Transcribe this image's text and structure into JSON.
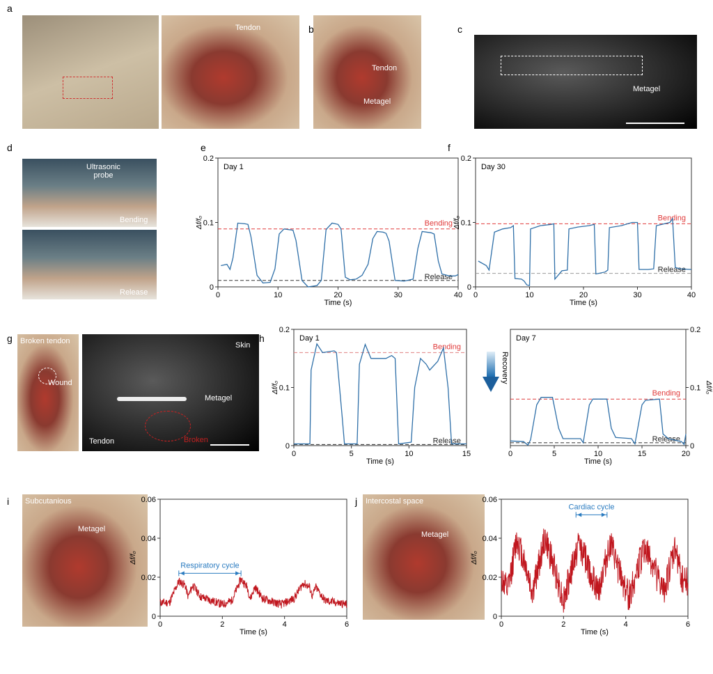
{
  "panels": {
    "a": "a",
    "b": "b",
    "c": "c",
    "d": "d",
    "e": "e",
    "f": "f",
    "g": "g",
    "h": "h",
    "i": "i",
    "j": "j"
  },
  "photo_labels": {
    "a_tendon": "Tendon",
    "b_tendon": "Tendon",
    "b_metagel": "Metagel",
    "c_metagel": "Metagel",
    "d_probe": "Ultrasonic\nprobe",
    "d_bending": "Bending",
    "d_release": "Release",
    "g_broken_tendon": "Broken tendon",
    "g_wound": "Wound",
    "g_skin": "Skin",
    "g_metagel": "Metagel",
    "g_tendon": "Tendon",
    "g_broken": "Broken",
    "i_site": "Subcutanious",
    "i_metagel": "Metagel",
    "j_site": "Intercostal space",
    "j_metagel": "Metagel"
  },
  "recovery_label": "Recovery",
  "colors": {
    "trace_blue": "#2e6fa8",
    "trace_red": "#c0161e",
    "bending_line": "#e03a3a",
    "release_line": "#333333",
    "annotation": "#2a7bc0"
  },
  "chart_data": [
    {
      "id": "e",
      "type": "line",
      "title": "Day 1",
      "xlabel": "Time (s)",
      "ylabel": "Δf/f₀",
      "xlim": [
        0,
        40
      ],
      "ylim": [
        0,
        0.2
      ],
      "xticks": [
        0,
        10,
        20,
        30,
        40
      ],
      "yticks": [
        0,
        0.1,
        0.2
      ],
      "ytick_labels": [
        "0",
        "0.1",
        "0.2"
      ],
      "color": "#2e6fa8",
      "refs": [
        {
          "label": "Bending",
          "y": 0.09,
          "color": "#e03a3a"
        },
        {
          "label": "Release",
          "y": 0.01,
          "color": "#333333"
        }
      ],
      "x": [
        0.5,
        1.5,
        2,
        2.5,
        3.3,
        4.5,
        5,
        5.5,
        6.5,
        7.5,
        8.7,
        9.5,
        10.2,
        11,
        12.5,
        13,
        14,
        15,
        16.5,
        17.2,
        18,
        19,
        20,
        20.5,
        21.2,
        22,
        23,
        24,
        25,
        25.8,
        26.5,
        27.5,
        28,
        28.5,
        29.5,
        31,
        32.5,
        33.3,
        34,
        35.5,
        36,
        36.7,
        37.3,
        38.5,
        39.5,
        40
      ],
      "y": [
        0.033,
        0.035,
        0.027,
        0.045,
        0.099,
        0.098,
        0.097,
        0.078,
        0.018,
        0.006,
        0.007,
        0.028,
        0.082,
        0.09,
        0.088,
        0.072,
        0.01,
        0.0,
        0.002,
        0.01,
        0.089,
        0.099,
        0.097,
        0.09,
        0.015,
        0.011,
        0.012,
        0.018,
        0.035,
        0.075,
        0.086,
        0.085,
        0.083,
        0.071,
        0.01,
        0.009,
        0.012,
        0.06,
        0.086,
        0.084,
        0.082,
        0.04,
        0.02,
        0.017,
        0.017,
        0.019
      ]
    },
    {
      "id": "f",
      "type": "line",
      "title": "Day 30",
      "xlabel": "Time (s)",
      "ylabel": "Δf/f₀",
      "xlim": [
        0,
        40
      ],
      "ylim": [
        0,
        0.2
      ],
      "xticks": [
        0,
        10,
        20,
        30,
        40
      ],
      "yticks": [
        0,
        0.1,
        0.2
      ],
      "ytick_labels": [
        "0",
        "0.1",
        "0.2"
      ],
      "color": "#2e6fa8",
      "refs": [
        {
          "label": "Bending",
          "y": 0.098,
          "color": "#e03a3a"
        },
        {
          "label": "Release",
          "y": 0.021,
          "color": "#999999"
        }
      ],
      "x": [
        0.5,
        2,
        2.5,
        3.5,
        5,
        6.5,
        7,
        7.3,
        8.5,
        9,
        9.5,
        10,
        10.2,
        12,
        14,
        14.5,
        14.7,
        16,
        17,
        17.3,
        19,
        21,
        22,
        22.3,
        24,
        24.5,
        24.8,
        27,
        29,
        30,
        30.3,
        32,
        33,
        33.5,
        36,
        36.5,
        37,
        38,
        40
      ],
      "y": [
        0.04,
        0.033,
        0.026,
        0.085,
        0.09,
        0.092,
        0.095,
        0.013,
        0.012,
        0.009,
        0.003,
        0.002,
        0.09,
        0.095,
        0.097,
        0.098,
        0.012,
        0.025,
        0.026,
        0.09,
        0.093,
        0.095,
        0.097,
        0.02,
        0.023,
        0.026,
        0.092,
        0.095,
        0.1,
        0.1,
        0.027,
        0.027,
        0.028,
        0.095,
        0.1,
        0.106,
        0.03,
        0.028,
        0.027
      ]
    },
    {
      "id": "h1",
      "type": "line",
      "title": "Day 1",
      "xlabel": "Time (s)",
      "ylabel": "Δf/f₀",
      "xlim": [
        0,
        15
      ],
      "ylim": [
        0,
        0.2
      ],
      "xticks": [
        0,
        5,
        10,
        15
      ],
      "yticks": [
        0,
        0.1,
        0.2
      ],
      "ytick_labels": [
        "0",
        "0.1",
        "0.2"
      ],
      "color": "#2e6fa8",
      "refs": [
        {
          "label": "Bending",
          "y": 0.16,
          "color": "#e08080"
        },
        {
          "label": "Release",
          "y": 0.002,
          "color": "#333333"
        }
      ],
      "x": [
        0,
        1.4,
        1.5,
        2,
        2.5,
        3.5,
        3.7,
        4.2,
        4.4,
        5.5,
        5.7,
        6.2,
        6.7,
        8,
        8.5,
        8.8,
        9.1,
        10.2,
        10.5,
        11,
        11.5,
        11.8,
        12.5,
        13,
        13.4,
        13.7,
        15
      ],
      "y": [
        0.003,
        0.003,
        0.13,
        0.175,
        0.16,
        0.163,
        0.16,
        0.05,
        0.003,
        0.003,
        0.14,
        0.174,
        0.15,
        0.15,
        0.155,
        0.15,
        0.003,
        0.006,
        0.1,
        0.15,
        0.14,
        0.13,
        0.145,
        0.168,
        0.1,
        0.003,
        0.003
      ]
    },
    {
      "id": "h2",
      "type": "line",
      "title": "Day 7",
      "xlabel": "Time (s)",
      "ylabel": "Δf/f₀",
      "xlim": [
        0,
        20
      ],
      "ylim": [
        0,
        0.2
      ],
      "xticks": [
        0,
        5,
        10,
        15,
        20
      ],
      "yticks": [
        0,
        0.1,
        0.2
      ],
      "ytick_labels": [
        "0",
        "0.1",
        "0.2"
      ],
      "yaxis": "right",
      "color": "#2e6fa8",
      "refs": [
        {
          "label": "Bending",
          "y": 0.08,
          "color": "#e03a3a"
        },
        {
          "label": "Release",
          "y": 0.005,
          "color": "#333333"
        }
      ],
      "x": [
        0,
        1.5,
        2,
        2.3,
        3,
        3.5,
        4.8,
        5.5,
        6,
        8,
        8.3,
        9,
        9.4,
        11,
        11.5,
        12,
        13.8,
        14.2,
        15,
        15.4,
        17,
        17.4,
        18,
        19.5,
        19.8,
        20
      ],
      "y": [
        0.008,
        0.007,
        0.001,
        0.01,
        0.07,
        0.083,
        0.083,
        0.03,
        0.012,
        0.012,
        0.005,
        0.07,
        0.08,
        0.08,
        0.03,
        0.014,
        0.012,
        0.003,
        0.07,
        0.078,
        0.08,
        0.02,
        0.012,
        0.007,
        0.002,
        0.02
      ]
    },
    {
      "id": "i",
      "type": "line",
      "title": "",
      "xlabel": "Time (s)",
      "ylabel": "Δf/f₀",
      "xlim": [
        0,
        6
      ],
      "ylim": [
        0,
        0.06
      ],
      "xticks": [
        0,
        2,
        4,
        6
      ],
      "yticks": [
        0,
        0.02,
        0.04,
        0.06
      ],
      "ytick_labels": [
        "0",
        "0.02",
        "0.04",
        "0.06"
      ],
      "color": "#c0161e",
      "noise": 0.0022,
      "annotation": {
        "label": "Respiratory cycle",
        "x0": 0.6,
        "x1": 2.6,
        "y": 0.022,
        "color": "#2a7bc0"
      },
      "x": [
        0,
        0.3,
        0.6,
        0.8,
        0.9,
        1.05,
        1.3,
        2,
        2.3,
        2.6,
        2.8,
        2.9,
        3.05,
        3.3,
        3.9,
        4.3,
        4.6,
        4.8,
        4.9,
        5,
        5.3,
        6
      ],
      "y": [
        0.007,
        0.007,
        0.018,
        0.016,
        0.01,
        0.016,
        0.01,
        0.006,
        0.008,
        0.019,
        0.015,
        0.009,
        0.015,
        0.009,
        0.006,
        0.009,
        0.017,
        0.015,
        0.01,
        0.015,
        0.008,
        0.006
      ]
    },
    {
      "id": "j",
      "type": "line",
      "title": "",
      "xlabel": "Time (s)",
      "ylabel": "Δf/f₀",
      "xlim": [
        0,
        6
      ],
      "ylim": [
        0,
        0.06
      ],
      "xticks": [
        0,
        2,
        4,
        6
      ],
      "yticks": [
        0,
        0.02,
        0.04,
        0.06
      ],
      "ytick_labels": [
        "0",
        "0.02",
        "0.04",
        "0.06"
      ],
      "color": "#c0161e",
      "noise": 0.008,
      "annotation": {
        "label": "Cardiac cycle",
        "x0": 2.4,
        "x1": 3.4,
        "y": 0.052,
        "color": "#2a7bc0"
      },
      "x": [
        0,
        0.2,
        0.5,
        0.8,
        1.0,
        1.4,
        1.7,
        2.0,
        2.5,
        2.8,
        3.1,
        3.5,
        3.8,
        4.1,
        4.6,
        4.9,
        5.2,
        5.6,
        5.8,
        6
      ],
      "y": [
        0.02,
        0.012,
        0.04,
        0.025,
        0.012,
        0.04,
        0.025,
        0.008,
        0.038,
        0.025,
        0.012,
        0.037,
        0.022,
        0.01,
        0.035,
        0.025,
        0.012,
        0.035,
        0.02,
        0.018
      ]
    }
  ]
}
